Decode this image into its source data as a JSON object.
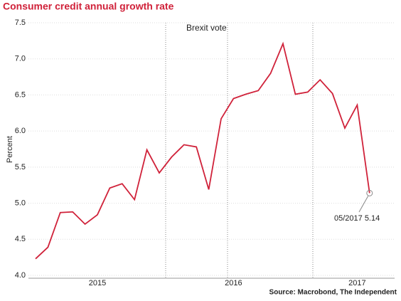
{
  "chart_data": {
    "type": "line",
    "title": "Consumer credit annual growth rate",
    "y_label": "Percent",
    "source": "Source: Macrobond, The Independent",
    "annotations": [
      "Brexit vote",
      "05/2017 5.14"
    ],
    "categories": [
      null,
      null,
      null,
      null,
      null,
      "2015",
      null,
      null,
      null,
      null,
      null,
      null,
      null,
      null,
      null,
      null,
      "2016",
      null,
      null,
      null,
      null,
      null,
      null,
      null,
      null,
      null,
      "2017",
      null
    ],
    "series": [
      {
        "name": "Consumer credit",
        "color": "#d0223a",
        "values": [
          4.23,
          4.39,
          4.87,
          4.88,
          4.71,
          4.84,
          5.21,
          5.27,
          5.05,
          5.74,
          5.42,
          5.64,
          5.81,
          5.78,
          5.19,
          6.17,
          6.45,
          6.51,
          6.56,
          6.8,
          7.21,
          6.51,
          6.54,
          6.71,
          6.52,
          6.04,
          6.36,
          5.14
        ]
      }
    ],
    "ylim": [
      4.0,
      7.5
    ],
    "yticks": [
      {
        "value": 4,
        "label": "4.0"
      },
      4.5,
      {
        "value": 5,
        "label": "5.0"
      },
      5.5,
      {
        "value": 6,
        "label": "6.0"
      },
      6.5,
      {
        "value": 7,
        "label": "7.0"
      },
      7.5
    ],
    "grid": true
  }
}
